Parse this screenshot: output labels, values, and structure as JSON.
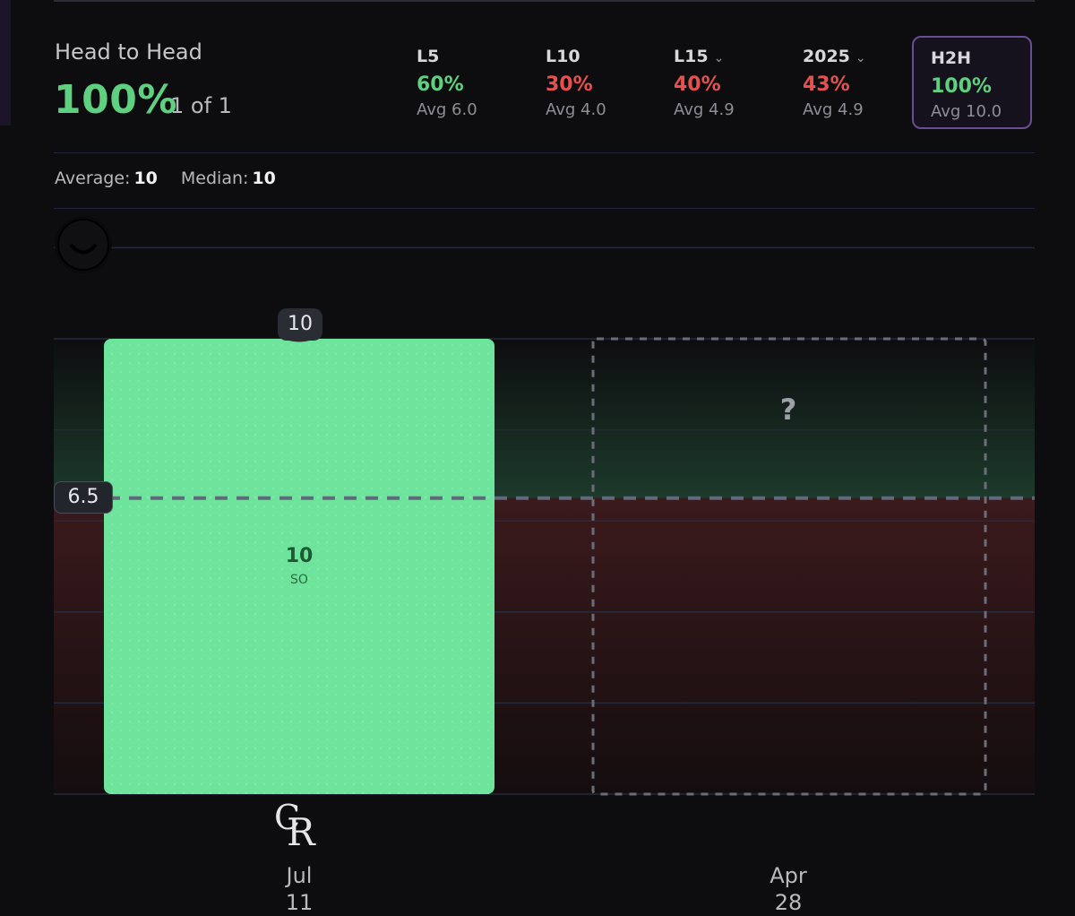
{
  "header": {
    "title": "Head to Head",
    "hit_rate": "100%",
    "record": "1 of 1"
  },
  "filters": [
    {
      "label": "L5",
      "pct": "60%",
      "avg": "Avg 6.0",
      "has_dropdown": false,
      "active": false
    },
    {
      "label": "L10",
      "pct": "30%",
      "avg": "Avg 4.0",
      "has_dropdown": false,
      "active": false
    },
    {
      "label": "L15",
      "pct": "40%",
      "avg": "Avg 4.9",
      "has_dropdown": true,
      "active": false
    },
    {
      "label": "2025",
      "pct": "43%",
      "avg": "Avg 4.9",
      "has_dropdown": true,
      "active": false
    },
    {
      "label": "H2H",
      "pct": "100%",
      "avg": "Avg 10.0",
      "has_dropdown": false,
      "active": true
    }
  ],
  "stats": {
    "average_label": "Average:",
    "average_value": "10",
    "median_label": "Median:",
    "median_value": "10"
  },
  "chart_data": {
    "type": "bar",
    "line_value": 6.5,
    "line_label": "6.5",
    "ylim": [
      0,
      15
    ],
    "bars": [
      {
        "value": 10,
        "value_label": "10",
        "unit": "SO",
        "month": "Jul",
        "day": "11",
        "team_logo": "CR",
        "played": true
      },
      {
        "value": null,
        "placeholder": "?",
        "month": "Apr",
        "day": "28",
        "team_logo": "smiley-face-icon",
        "played": false
      }
    ]
  },
  "colors": {
    "hit": "#5fd07f",
    "miss": "#e6514f",
    "bar_fill": "#6ee39b",
    "active_border": "#6a4d93"
  }
}
